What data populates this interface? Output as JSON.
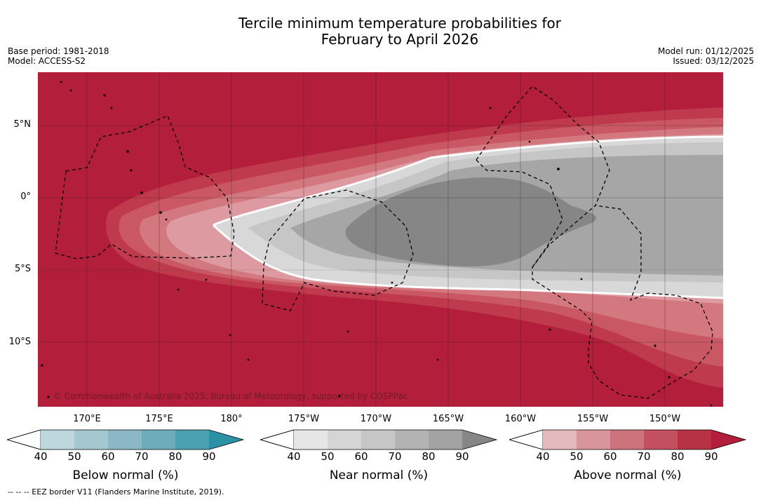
{
  "title": {
    "line1": "Tercile minimum temperature probabilities for",
    "line2": "February to April 2026"
  },
  "meta": {
    "base_period": "Base period: 1981-2018",
    "model": "Model: ACCESS-S2",
    "model_run": "Model run: 01/12/2025",
    "issued": "Issued: 03/12/2025"
  },
  "map": {
    "lat_labels": [
      "5°N",
      "0°",
      "5°S",
      "10°S"
    ],
    "lon_labels": [
      "170°E",
      "175°E",
      "180°",
      "175°W",
      "170°W",
      "165°W",
      "160°W",
      "155°W",
      "150°W"
    ],
    "credit": "© Commonwealth of Australia 2025, Bureau of Meteorology, supported by COSPPac",
    "colors": {
      "above90": "#b31e3a",
      "above80": "#bf3a4d",
      "above70": "#c95764",
      "above60": "#d3787f",
      "above50": "#dd9aa0",
      "near40": "#d8d8d8",
      "near50": "#c6c6c6",
      "near60": "#a6a6a6",
      "near70": "#868686"
    }
  },
  "colorbars": [
    {
      "name": "below",
      "title": "Below normal (%)",
      "ticks": [
        "40",
        "50",
        "60",
        "70",
        "80",
        "90"
      ],
      "colors": [
        "#bed6de",
        "#a5c8d0",
        "#8bb8c4",
        "#6eacbc",
        "#4ba0b1",
        "#2b92a5"
      ]
    },
    {
      "name": "near",
      "title": "Near normal (%)",
      "ticks": [
        "40",
        "50",
        "60",
        "70",
        "80",
        "90"
      ],
      "colors": [
        "#e6e6e6",
        "#d5d5d5",
        "#c6c6c6",
        "#b3b3b3",
        "#a3a3a3",
        "#868686"
      ]
    },
    {
      "name": "above",
      "title": "Above normal (%)",
      "ticks": [
        "40",
        "50",
        "60",
        "70",
        "80",
        "90"
      ],
      "colors": [
        "#e3b9be",
        "#d8959b",
        "#cc737c",
        "#c2505e",
        "#b83246",
        "#b31e3a"
      ]
    }
  ],
  "footer": "--  --  -- EEZ border V11 (Flanders Marine Institute, 2019)."
}
